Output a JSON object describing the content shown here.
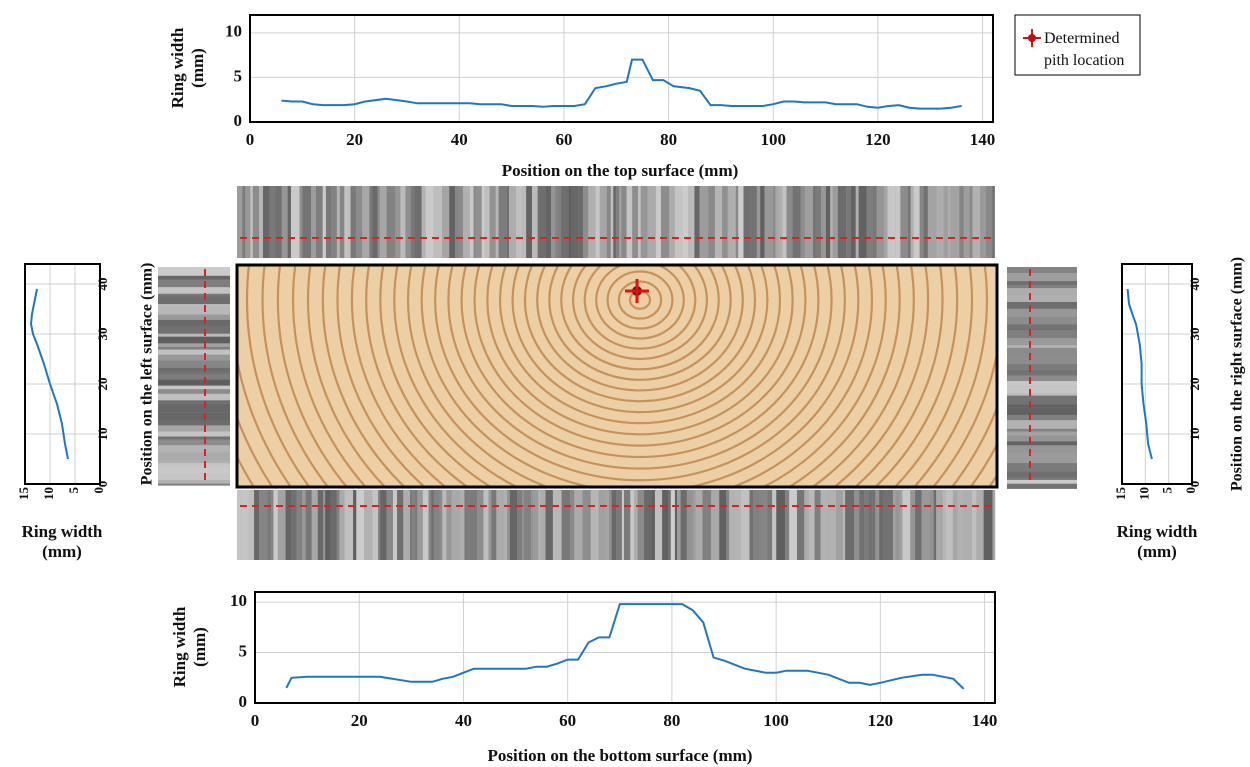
{
  "chart_data": [
    {
      "type": "line",
      "xlabel": "Position on the top surface (mm)",
      "ylabel": "Ring width (mm)",
      "xlim": [
        0,
        142
      ],
      "ylim": [
        0,
        12
      ],
      "xticks": [
        0,
        20,
        40,
        60,
        80,
        100,
        120,
        140
      ],
      "yticks": [
        0,
        5,
        10
      ],
      "grid": true,
      "series": [
        {
          "color": "#1f77c4",
          "x": [
            6,
            8,
            10,
            12,
            14,
            18,
            20,
            22,
            26,
            30,
            32,
            40,
            42,
            44,
            48,
            50,
            54,
            56,
            58,
            62,
            64,
            66,
            68,
            70,
            72,
            73,
            75,
            77,
            79,
            81,
            84,
            86,
            88,
            90,
            92,
            98,
            100,
            102,
            104,
            106,
            110,
            112,
            116,
            118,
            120,
            122,
            124,
            126,
            128,
            132,
            134,
            136
          ],
          "values": [
            2.4,
            2.3,
            2.3,
            2.0,
            1.9,
            1.9,
            2.0,
            2.3,
            2.6,
            2.3,
            2.1,
            2.1,
            2.1,
            2.0,
            2.0,
            1.8,
            1.8,
            1.7,
            1.8,
            1.8,
            2.0,
            3.8,
            4.0,
            4.3,
            4.5,
            7.0,
            7.0,
            4.7,
            4.7,
            4.0,
            3.8,
            3.5,
            1.9,
            1.9,
            1.8,
            1.8,
            2.0,
            2.3,
            2.3,
            2.2,
            2.2,
            2.0,
            2.0,
            1.7,
            1.6,
            1.8,
            1.9,
            1.6,
            1.5,
            1.5,
            1.6,
            1.8
          ]
        }
      ]
    },
    {
      "type": "line",
      "xlabel": "Position on the bottom surface (mm)",
      "ylabel": "Ring width (mm)",
      "xlim": [
        0,
        142
      ],
      "ylim": [
        0,
        11
      ],
      "xticks": [
        0,
        20,
        40,
        60,
        80,
        100,
        120,
        140
      ],
      "yticks": [
        0,
        5,
        10
      ],
      "grid": true,
      "series": [
        {
          "color": "#1f77c4",
          "x": [
            6,
            7,
            10,
            24,
            30,
            34,
            36,
            38,
            40,
            42,
            52,
            54,
            56,
            58,
            60,
            62,
            64,
            66,
            68,
            70,
            82,
            84,
            86,
            88,
            90,
            94,
            98,
            100,
            102,
            106,
            110,
            114,
            116,
            118,
            120,
            124,
            128,
            130,
            134,
            136
          ],
          "values": [
            1.5,
            2.5,
            2.6,
            2.6,
            2.1,
            2.1,
            2.4,
            2.6,
            3.0,
            3.4,
            3.4,
            3.6,
            3.6,
            3.9,
            4.3,
            4.3,
            6.0,
            6.5,
            6.5,
            9.8,
            9.8,
            9.2,
            8.0,
            4.5,
            4.2,
            3.4,
            3.0,
            3.0,
            3.2,
            3.2,
            2.8,
            2.0,
            2.0,
            1.8,
            2.0,
            2.5,
            2.8,
            2.8,
            2.4,
            1.4
          ]
        }
      ]
    },
    {
      "type": "line",
      "swap_axes": true,
      "value_axis_reversed": true,
      "xlabel": "Position on the left surface (mm)",
      "ylabel": "Ring width (mm)",
      "xlim": [
        0,
        44
      ],
      "ylim": [
        0,
        15
      ],
      "xticks": [
        0,
        10,
        20,
        30,
        40
      ],
      "yticks": [
        0,
        5,
        10,
        15
      ],
      "grid": true,
      "series": [
        {
          "color": "#1f77c4",
          "x": [
            5,
            8,
            12,
            16,
            20,
            24,
            28,
            30,
            32,
            34,
            36,
            38,
            39
          ],
          "values": [
            6.4,
            7.0,
            7.6,
            8.6,
            10.0,
            11.2,
            12.6,
            13.4,
            13.8,
            13.6,
            13.2,
            12.8,
            12.6
          ]
        }
      ]
    },
    {
      "type": "line",
      "swap_axes": true,
      "value_axis_reversed": true,
      "xlabel": "Position on the right surface (mm)",
      "ylabel": "Ring width (mm)",
      "xlim": [
        0,
        44
      ],
      "ylim": [
        0,
        15
      ],
      "xticks": [
        0,
        10,
        20,
        30,
        40
      ],
      "yticks": [
        0,
        5,
        10,
        15
      ],
      "grid": true,
      "series": [
        {
          "color": "#1f77c4",
          "x": [
            5,
            8,
            12,
            16,
            20,
            24,
            28,
            32,
            34,
            36,
            39
          ],
          "values": [
            8.6,
            9.4,
            9.8,
            10.4,
            10.8,
            10.8,
            11.2,
            12.0,
            12.8,
            13.5,
            13.8
          ]
        }
      ]
    }
  ],
  "pith_legend": "Determined pith location"
}
